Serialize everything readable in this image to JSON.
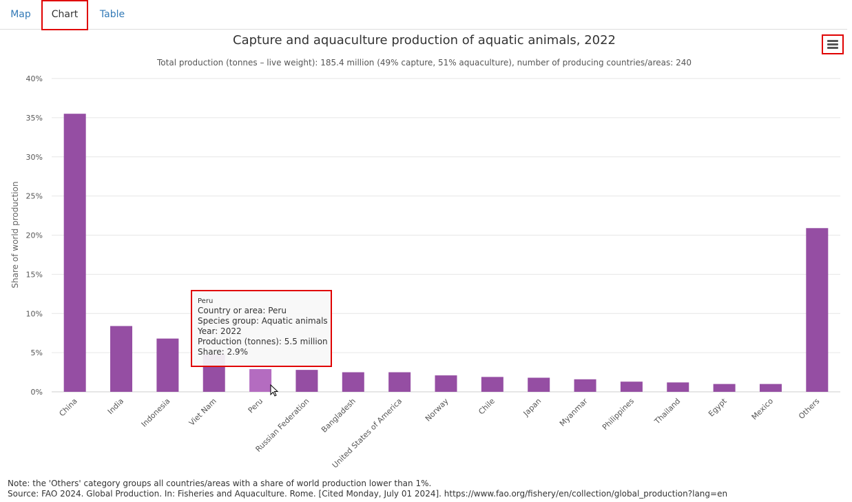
{
  "tabs": [
    {
      "label": "Map",
      "active": false
    },
    {
      "label": "Chart",
      "active": true
    },
    {
      "label": "Table",
      "active": false
    }
  ],
  "menu": {
    "icon": "hamburger-menu-icon"
  },
  "chart_data": {
    "type": "bar",
    "title": "Capture and aquaculture production of aquatic animals, 2022",
    "subtitle": "Total production (tonnes – live weight): 185.4 million (49% capture, 51% aquaculture), number of producing countries/areas: 240",
    "xlabel": "",
    "ylabel": "Share of world production",
    "ylim": [
      0,
      40
    ],
    "yticks": [
      "0%",
      "5%",
      "10%",
      "15%",
      "20%",
      "25%",
      "30%",
      "35%",
      "40%"
    ],
    "grid": true,
    "legend": "none",
    "color": "#954ea3",
    "hover_color": "#b46cc0",
    "categories": [
      "China",
      "India",
      "Indonesia",
      "Viet Nam",
      "Peru",
      "Russian Federation",
      "Bangladesh",
      "United States of America",
      "Norway",
      "Chile",
      "Japan",
      "Myanmar",
      "Philippines",
      "Thailand",
      "Egypt",
      "Mexico",
      "Others"
    ],
    "values": [
      35.5,
      8.4,
      6.8,
      4.8,
      2.9,
      2.8,
      2.5,
      2.5,
      2.1,
      1.9,
      1.8,
      1.6,
      1.3,
      1.2,
      1.0,
      1.0,
      20.9
    ],
    "highlighted_index": 4
  },
  "tooltip": {
    "header": "Peru",
    "lines": [
      "Country or area: Peru",
      "Species group: Aquatic animals",
      "Year: 2022",
      "Production (tonnes): 5.5 million",
      "Share: 2.9%"
    ]
  },
  "footer": {
    "note": "Note: the 'Others' category groups all countries/areas with a share of world production lower than 1%.",
    "source": "Source: FAO 2024. Global Production. In: Fisheries and Aquaculture. Rome. [Cited Monday, July 01 2024]. https://www.fao.org/fishery/en/collection/global_production?lang=en"
  }
}
